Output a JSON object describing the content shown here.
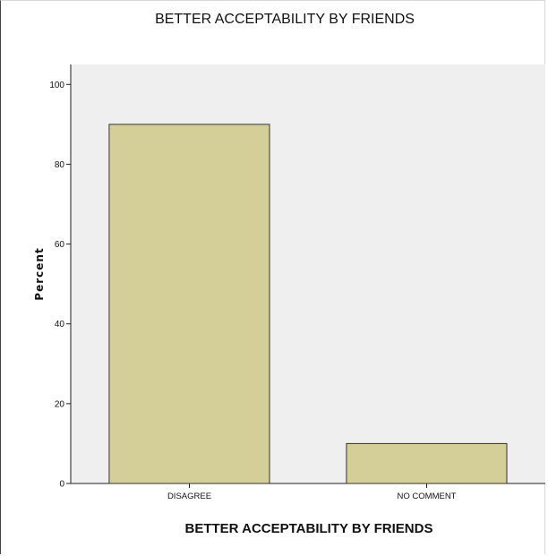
{
  "chart_data": {
    "type": "bar",
    "title": "BETTER ACCEPTABILITY BY FRIENDS",
    "xlabel": "BETTER ACCEPTABILITY BY FRIENDS",
    "ylabel": "Percent",
    "categories": [
      "DISAGREE",
      "NO COMMENT"
    ],
    "values": [
      90,
      10
    ],
    "ylim": [
      0,
      105
    ],
    "yticks": [
      0,
      20,
      40,
      60,
      80,
      100
    ],
    "grid": false,
    "colors": {
      "bar_fill": "#d4cf99",
      "bar_stroke": "#333333",
      "plot_background": "#efefef"
    }
  }
}
